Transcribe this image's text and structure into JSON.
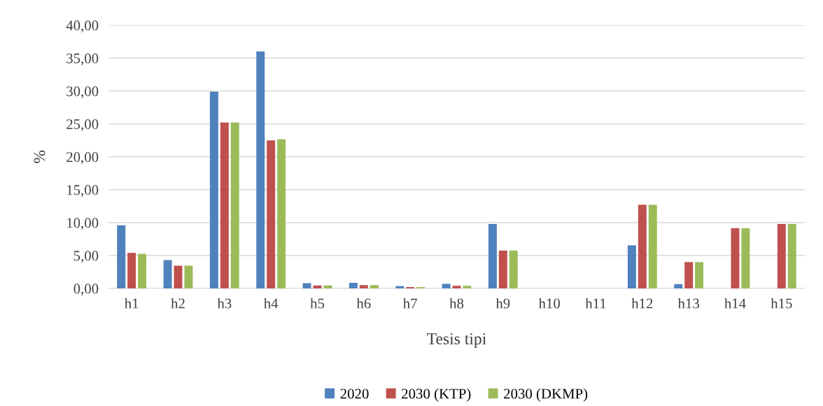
{
  "chart_data": {
    "type": "bar",
    "xlabel": "Tesis tipi",
    "ylabel": "%",
    "categories": [
      "h1",
      "h2",
      "h3",
      "h4",
      "h5",
      "h6",
      "h7",
      "h8",
      "h9",
      "h10",
      "h11",
      "h12",
      "h13",
      "h14",
      "h15"
    ],
    "series": [
      {
        "name": "2020",
        "color": "#4f81bd",
        "values": [
          9.6,
          4.3,
          29.9,
          36.0,
          0.8,
          0.85,
          0.35,
          0.7,
          9.8,
          0,
          0,
          6.55,
          0.65,
          0,
          0
        ]
      },
      {
        "name": "2030 (KTP)",
        "color": "#c0504d",
        "values": [
          5.4,
          3.45,
          25.2,
          22.5,
          0.45,
          0.5,
          0.2,
          0.4,
          5.75,
          0,
          0,
          12.7,
          4.0,
          9.15,
          9.8
        ]
      },
      {
        "name": "2030 (DKMP)",
        "color": "#9bbb59",
        "values": [
          5.25,
          3.45,
          25.2,
          22.65,
          0.45,
          0.5,
          0.2,
          0.4,
          5.75,
          0,
          0,
          12.7,
          4.0,
          9.15,
          9.8
        ]
      }
    ],
    "ylim": [
      0,
      40
    ],
    "yticks": [
      {
        "value": 0,
        "label": "0,00"
      },
      {
        "value": 5,
        "label": "5,00"
      },
      {
        "value": 10,
        "label": "10,00"
      },
      {
        "value": 15,
        "label": "15,00"
      },
      {
        "value": 20,
        "label": "20,00"
      },
      {
        "value": 25,
        "label": "25,00"
      },
      {
        "value": 30,
        "label": "30,00"
      },
      {
        "value": 35,
        "label": "35,00"
      },
      {
        "value": 40,
        "label": "40,00"
      }
    ],
    "grid": "y",
    "legend": "bottom"
  }
}
